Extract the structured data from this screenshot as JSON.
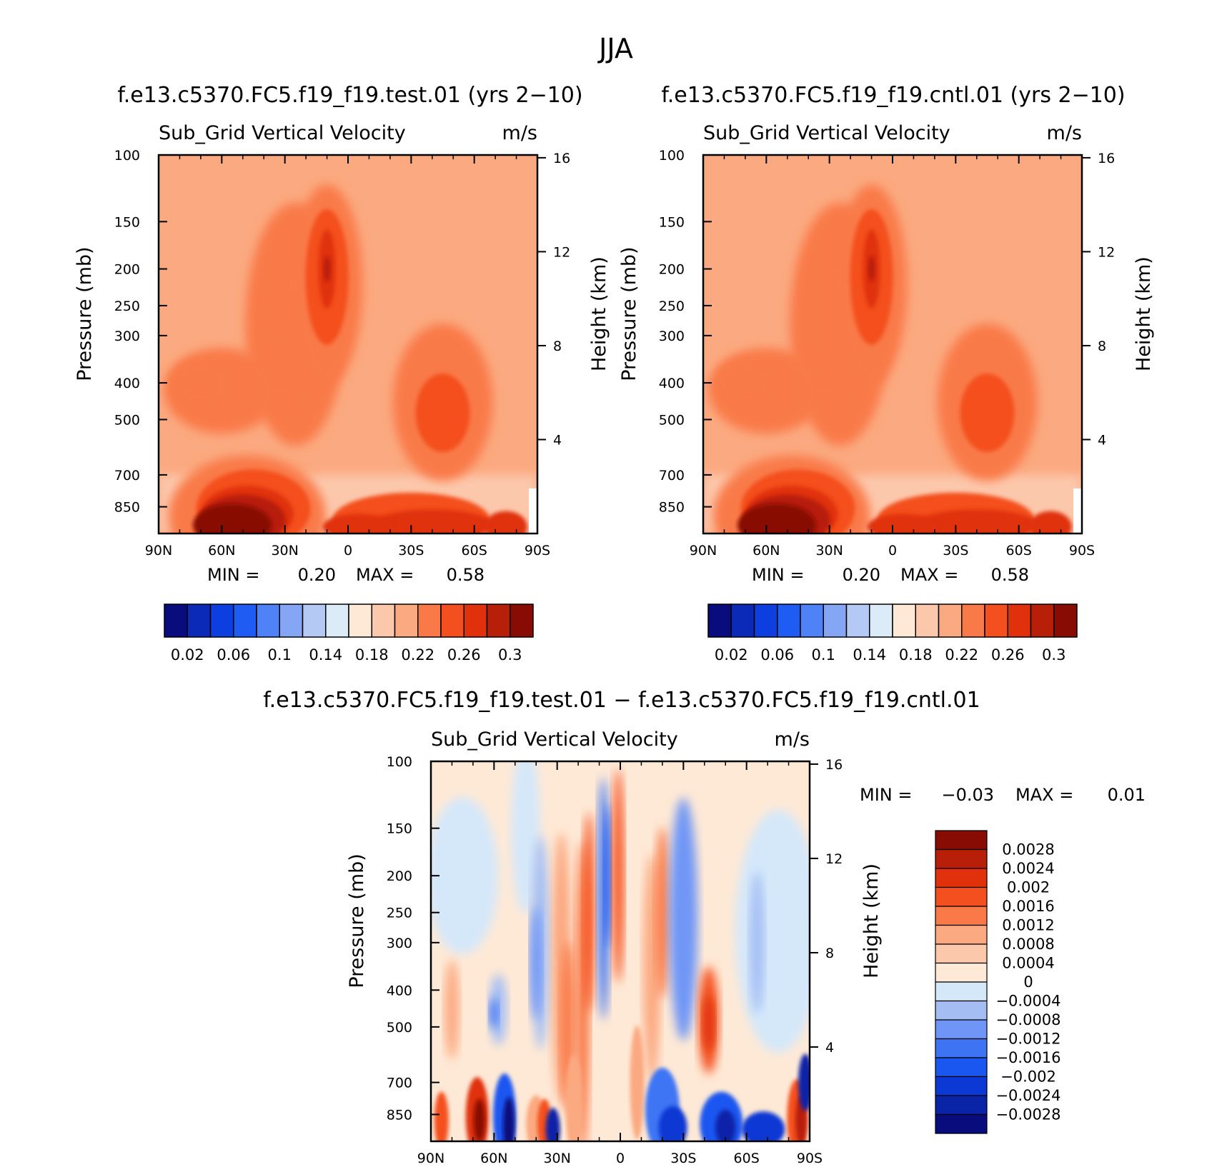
{
  "figure": {
    "season_title": "JJA",
    "colors": {
      "test_cntl_palette": [
        "#080c7c",
        "#0c2ab8",
        "#0d3fe0",
        "#1f5cf4",
        "#4f82f6",
        "#84a6f4",
        "#b4c9f4",
        "#dcebf8",
        "#fee9d6",
        "#fcc8ac",
        "#fba980",
        "#f97a48",
        "#f44f1e",
        "#e0300c",
        "#b71f08",
        "#880c04"
      ],
      "diff_palette": [
        "#080c7c",
        "#0a24a8",
        "#0c38d4",
        "#1a56f0",
        "#3e74f4",
        "#6f96f6",
        "#a4bef4",
        "#d4e8fa",
        "#fee9d6",
        "#fcc8ac",
        "#fba980",
        "#f97a48",
        "#f44f1e",
        "#e0300c",
        "#b71f08",
        "#880c04"
      ],
      "missing": "#ffffff"
    }
  },
  "chart_data": [
    {
      "type": "heatmap",
      "id": "test",
      "title": "f.e13.c5370.FC5.f19_f19.test.01 (yrs 2-10)",
      "variable": "Sub_Grid Vertical Velocity",
      "units": "m/s",
      "xlabel": "",
      "ylabel": "Pressure (mb)",
      "y2label": "Height (km)",
      "x_ticks": [
        "90N",
        "60N",
        "30N",
        "0",
        "30S",
        "60S",
        "90S"
      ],
      "y_ticks": [
        "100",
        "150",
        "200",
        "250",
        "300",
        "400",
        "500",
        "700",
        "850"
      ],
      "y2_ticks": [
        "16",
        "12",
        "8",
        "4"
      ],
      "xlim": [
        90,
        -90
      ],
      "ylim_mb": [
        100,
        1000
      ],
      "min_label": "MIN =",
      "min_value": "0.20",
      "max_label": "MAX =",
      "max_value": "0.58",
      "colorbar": {
        "orientation": "horizontal",
        "levels": [
          0.02,
          0.04,
          0.06,
          0.08,
          0.1,
          0.12,
          0.14,
          0.16,
          0.18,
          0.2,
          0.22,
          0.24,
          0.26,
          0.28,
          0.3
        ],
        "tick_labels": [
          "0.02",
          "0.06",
          "0.1",
          "0.14",
          "0.18",
          "0.22",
          "0.26",
          "0.3"
        ]
      },
      "fill_description": "Filled contour: background 0.20-0.22 (salmon) above 700 mb; maxima up to >0.30 near 200 mb at 10N and below 750 mb at 40N-70N"
    },
    {
      "type": "heatmap",
      "id": "cntl",
      "title": "f.e13.c5370.FC5.f19_f19.cntl.01 (yrs 2-10)",
      "variable": "Sub_Grid Vertical Velocity",
      "units": "m/s",
      "xlabel": "",
      "ylabel": "Pressure (mb)",
      "y2label": "Height (km)",
      "x_ticks": [
        "90N",
        "60N",
        "30N",
        "0",
        "30S",
        "60S",
        "90S"
      ],
      "y_ticks": [
        "100",
        "150",
        "200",
        "250",
        "300",
        "400",
        "500",
        "700",
        "850"
      ],
      "y2_ticks": [
        "16",
        "12",
        "8",
        "4"
      ],
      "xlim": [
        90,
        -90
      ],
      "ylim_mb": [
        100,
        1000
      ],
      "min_label": "MIN =",
      "min_value": "0.20",
      "max_label": "MAX =",
      "max_value": "0.58",
      "colorbar": {
        "orientation": "horizontal",
        "levels": [
          0.02,
          0.04,
          0.06,
          0.08,
          0.1,
          0.12,
          0.14,
          0.16,
          0.18,
          0.2,
          0.22,
          0.24,
          0.26,
          0.28,
          0.3
        ],
        "tick_labels": [
          "0.02",
          "0.06",
          "0.1",
          "0.14",
          "0.18",
          "0.22",
          "0.26",
          "0.3"
        ]
      },
      "fill_description": "Nearly identical to test run"
    },
    {
      "type": "heatmap",
      "id": "diff",
      "title": "f.e13.c5370.FC5.f19_f19.test.01 - f.e13.c5370.FC5.f19_f19.cntl.01",
      "variable": "Sub_Grid Vertical Velocity",
      "units": "m/s",
      "xlabel": "",
      "ylabel": "Pressure (mb)",
      "y2label": "Height (km)",
      "x_ticks": [
        "90N",
        "60N",
        "30N",
        "0",
        "30S",
        "60S",
        "90S"
      ],
      "y_ticks": [
        "100",
        "150",
        "200",
        "250",
        "300",
        "400",
        "500",
        "700",
        "850"
      ],
      "y2_ticks": [
        "16",
        "12",
        "8",
        "4"
      ],
      "xlim": [
        90,
        -90
      ],
      "ylim_mb": [
        100,
        1000
      ],
      "min_label": "MIN =",
      "min_value": "-0.03",
      "max_label": "MAX =",
      "max_value": "0.01",
      "colorbar": {
        "orientation": "vertical",
        "levels": [
          -0.0028,
          -0.0024,
          -0.002,
          -0.0016,
          -0.0012,
          -0.0008,
          -0.0004,
          0,
          0.0004,
          0.0008,
          0.0012,
          0.0016,
          0.002,
          0.0024,
          0.0028
        ],
        "tick_labels": [
          "0.0028",
          "0.0024",
          "0.002",
          "0.0016",
          "0.0012",
          "0.0008",
          "0.0004",
          "0",
          "-0.0004",
          "-0.0008",
          "-0.0012",
          "-0.0016",
          "-0.002",
          "-0.0024",
          "-0.0028"
        ]
      },
      "fill_description": "Alternating positive (red) and negative (blue) vertical bands; strongest anomalies below 700 mb"
    }
  ]
}
